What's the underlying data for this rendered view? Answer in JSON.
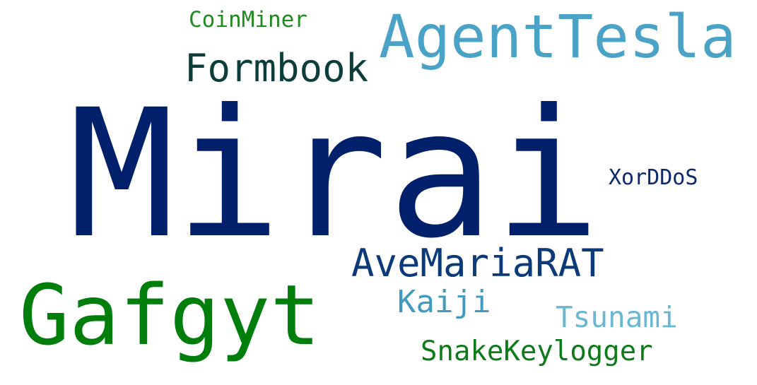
{
  "word_cloud": {
    "words": [
      {
        "text": "Mirai",
        "color": "#00206b"
      },
      {
        "text": "AgentTesla",
        "color": "#4aa3c7"
      },
      {
        "text": "Gafgyt",
        "color": "#007e0c"
      },
      {
        "text": "Formbook",
        "color": "#0b3d3a"
      },
      {
        "text": "AveMariaRAT",
        "color": "#0a3a7a"
      },
      {
        "text": "SnakeKeylogger",
        "color": "#0e7a1a"
      },
      {
        "text": "Tsunami",
        "color": "#6ab7d1"
      },
      {
        "text": "Kaiji",
        "color": "#3f9cc0"
      },
      {
        "text": "XorDDoS",
        "color": "#0b2a6b"
      },
      {
        "text": "CoinMiner",
        "color": "#1f8a1f"
      }
    ]
  }
}
